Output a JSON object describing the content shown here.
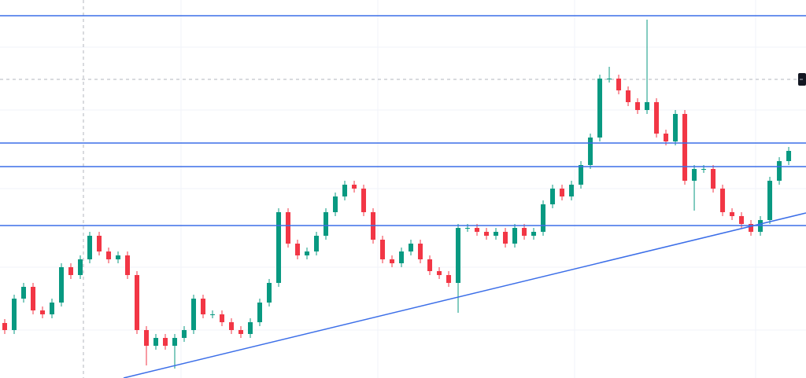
{
  "chart_data": {
    "type": "candlestick",
    "xlim": [
      -0.5,
      84.83
    ],
    "ylim": [
      0,
      481
    ],
    "up_color": "#089981",
    "down_color": "#f23645",
    "line_color": "#3b6ee8",
    "crosshair_color": "#b2b5be",
    "open": [
      70,
      61,
      101,
      116,
      86,
      81,
      96,
      141,
      131,
      151,
      181,
      161,
      151,
      156,
      131,
      61,
      41,
      51,
      41,
      51,
      61,
      101,
      81,
      81,
      71,
      61,
      56,
      71,
      96,
      121,
      211,
      171,
      156,
      161,
      181,
      211,
      231,
      246,
      241,
      211,
      176,
      151,
      146,
      161,
      171,
      151,
      136,
      131,
      121,
      191,
      191,
      186,
      181,
      186,
      171,
      191,
      181,
      186,
      221,
      241,
      231,
      246,
      271,
      306,
      381,
      381,
      366,
      351,
      341,
      351,
      311,
      301,
      336,
      251,
      266,
      266,
      241,
      211,
      206,
      196,
      186,
      201,
      251,
      276
    ],
    "high": [
      75,
      106,
      121,
      121,
      91,
      101,
      146,
      146,
      156,
      186,
      186,
      166,
      161,
      161,
      136,
      66,
      56,
      56,
      56,
      66,
      106,
      106,
      86,
      86,
      76,
      66,
      76,
      101,
      126,
      216,
      216,
      176,
      166,
      186,
      216,
      236,
      251,
      251,
      246,
      216,
      181,
      156,
      166,
      176,
      176,
      156,
      141,
      136,
      196,
      196,
      196,
      191,
      191,
      191,
      196,
      196,
      191,
      226,
      246,
      246,
      251,
      276,
      311,
      386,
      396,
      386,
      371,
      356,
      456,
      356,
      316,
      341,
      341,
      271,
      271,
      271,
      246,
      216,
      211,
      201,
      206,
      256,
      281,
      294
    ],
    "low": [
      56,
      56,
      96,
      81,
      76,
      76,
      91,
      126,
      126,
      146,
      156,
      146,
      146,
      126,
      56,
      16,
      36,
      36,
      12,
      46,
      56,
      76,
      76,
      66,
      56,
      51,
      51,
      66,
      91,
      116,
      166,
      151,
      151,
      156,
      176,
      206,
      226,
      236,
      206,
      171,
      146,
      141,
      141,
      156,
      146,
      131,
      126,
      116,
      83,
      186,
      181,
      176,
      176,
      166,
      166,
      176,
      176,
      181,
      216,
      226,
      226,
      241,
      266,
      301,
      376,
      361,
      346,
      336,
      336,
      306,
      296,
      296,
      246,
      213,
      261,
      236,
      206,
      201,
      191,
      181,
      181,
      196,
      246,
      271
    ],
    "close": [
      61,
      101,
      116,
      86,
      81,
      96,
      141,
      131,
      151,
      181,
      161,
      151,
      156,
      131,
      61,
      41,
      51,
      41,
      51,
      61,
      101,
      81,
      81,
      71,
      61,
      56,
      71,
      96,
      121,
      211,
      171,
      156,
      161,
      181,
      211,
      231,
      246,
      241,
      211,
      176,
      151,
      146,
      161,
      171,
      151,
      136,
      131,
      121,
      191,
      191,
      186,
      181,
      186,
      171,
      191,
      181,
      186,
      221,
      241,
      231,
      246,
      271,
      306,
      381,
      381,
      366,
      351,
      341,
      351,
      311,
      301,
      336,
      251,
      266,
      266,
      241,
      211,
      206,
      196,
      186,
      201,
      251,
      276,
      289
    ],
    "hlines": [
      461,
      299,
      269,
      194
    ],
    "crosshair": {
      "x": 8.33,
      "y": 380
    },
    "trendline": [
      [
        12.58,
        0
      ],
      [
        84.83,
        210
      ]
    ]
  }
}
